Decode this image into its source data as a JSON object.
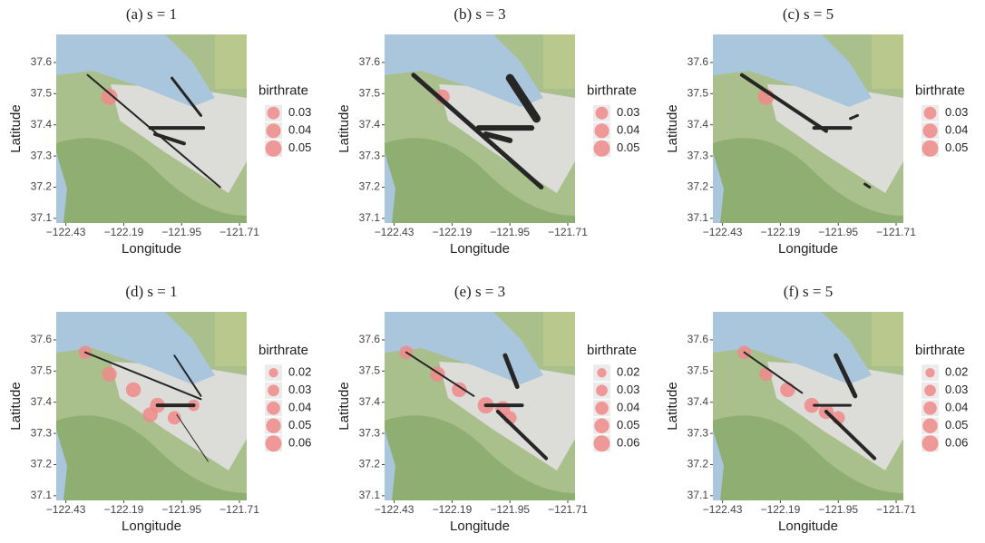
{
  "chart_data": [
    {
      "type": "scatter",
      "title": "(a) s = 1",
      "x_label": "Longitude",
      "y_label": "Latitude",
      "xlim": [
        -122.47,
        -121.68
      ],
      "ylim": [
        37.085,
        37.69
      ],
      "xticks": [
        {
          "value": -122.43,
          "label": "−122.43"
        },
        {
          "value": -122.19,
          "label": "−122.19"
        },
        {
          "value": -121.95,
          "label": "−121.95"
        },
        {
          "value": -121.71,
          "label": "−121.71"
        }
      ],
      "yticks": [
        37.1,
        37.2,
        37.3,
        37.4,
        37.5,
        37.6
      ],
      "legend_title": "birthrate",
      "legend_sizes": [
        0.03,
        0.04,
        0.05
      ],
      "color": "#f08a8a",
      "points": {
        "x": [
          -122.25
        ],
        "y": [
          37.49
        ],
        "size": [
          0.05
        ]
      },
      "segments": [
        {
          "x": [
            -122.34,
            -121.79
          ],
          "y": [
            37.56,
            37.2
          ],
          "width": 2
        },
        {
          "x": [
            -121.99,
            -121.87
          ],
          "y": [
            37.55,
            37.43
          ],
          "width": 3
        },
        {
          "x": [
            -122.08,
            -121.86
          ],
          "y": [
            37.39,
            37.39
          ],
          "width": 4
        },
        {
          "x": [
            -122.06,
            -121.94
          ],
          "y": [
            37.37,
            37.34
          ],
          "width": 4
        }
      ]
    },
    {
      "type": "scatter",
      "title": "(b) s = 3",
      "x_label": "Longitude",
      "y_label": "Latitude",
      "xlim": [
        -122.47,
        -121.68
      ],
      "ylim": [
        37.085,
        37.69
      ],
      "xticks": [
        {
          "value": -122.43,
          "label": "−122.43"
        },
        {
          "value": -122.19,
          "label": "−122.19"
        },
        {
          "value": -121.95,
          "label": "−121.95"
        },
        {
          "value": -121.71,
          "label": "−121.71"
        }
      ],
      "yticks": [
        37.1,
        37.2,
        37.3,
        37.4,
        37.5,
        37.6
      ],
      "legend_title": "birthrate",
      "legend_sizes": [
        0.03,
        0.04,
        0.05
      ],
      "color": "#f08a8a",
      "points": {
        "x": [
          -122.23
        ],
        "y": [
          37.49
        ],
        "size": [
          0.04
        ]
      },
      "segments": [
        {
          "x": [
            -122.35,
            -121.82
          ],
          "y": [
            37.56,
            37.2
          ],
          "width": 5
        },
        {
          "x": [
            -121.95,
            -121.84
          ],
          "y": [
            37.55,
            37.42
          ],
          "width": 9
        },
        {
          "x": [
            -122.08,
            -121.86
          ],
          "y": [
            37.39,
            37.39
          ],
          "width": 6
        },
        {
          "x": [
            -122.05,
            -121.95
          ],
          "y": [
            37.37,
            37.35
          ],
          "width": 6
        }
      ]
    },
    {
      "type": "scatter",
      "title": "(c) s = 5",
      "x_label": "Longitude",
      "y_label": "Latitude",
      "xlim": [
        -122.47,
        -121.68
      ],
      "ylim": [
        37.085,
        37.69
      ],
      "xticks": [
        {
          "value": -122.43,
          "label": "−122.43"
        },
        {
          "value": -122.19,
          "label": "−122.19"
        },
        {
          "value": -121.95,
          "label": "−121.95"
        },
        {
          "value": -121.71,
          "label": "−121.71"
        }
      ],
      "yticks": [
        37.1,
        37.2,
        37.3,
        37.4,
        37.5,
        37.6
      ],
      "legend_title": "birthrate",
      "legend_sizes": [
        0.03,
        0.04,
        0.05
      ],
      "color": "#f08a8a",
      "points": {
        "x": [
          -122.25
        ],
        "y": [
          37.49
        ],
        "size": [
          0.05
        ]
      },
      "segments": [
        {
          "x": [
            -122.35,
            -122.0
          ],
          "y": [
            37.56,
            37.38
          ],
          "width": 4
        },
        {
          "x": [
            -122.05,
            -121.9
          ],
          "y": [
            37.39,
            37.39
          ],
          "width": 4
        },
        {
          "x": [
            -121.9,
            -121.87
          ],
          "y": [
            37.42,
            37.43
          ],
          "width": 3
        },
        {
          "x": [
            -121.84,
            -121.82
          ],
          "y": [
            37.21,
            37.2
          ],
          "width": 3
        }
      ]
    },
    {
      "type": "scatter",
      "title": "(d) s = 1",
      "x_label": "Longitude",
      "y_label": "Latitude",
      "xlim": [
        -122.47,
        -121.68
      ],
      "ylim": [
        37.085,
        37.69
      ],
      "xticks": [
        {
          "value": -122.43,
          "label": "−122.43"
        },
        {
          "value": -122.19,
          "label": "−122.19"
        },
        {
          "value": -121.95,
          "label": "−121.95"
        },
        {
          "value": -121.71,
          "label": "−121.71"
        }
      ],
      "yticks": [
        37.1,
        37.2,
        37.3,
        37.4,
        37.5,
        37.6
      ],
      "legend_title": "birthrate",
      "legend_sizes": [
        0.02,
        0.03,
        0.04,
        0.05,
        0.06
      ],
      "color": "#f08a8a",
      "points": {
        "x": [
          -122.35,
          -122.25,
          -122.15,
          -122.05,
          -122.08,
          -121.98,
          -121.9
        ],
        "y": [
          37.56,
          37.49,
          37.44,
          37.39,
          37.36,
          37.35,
          37.39
        ],
        "size": [
          0.04,
          0.05,
          0.05,
          0.05,
          0.05,
          0.04,
          0.03
        ]
      },
      "segments": [
        {
          "x": [
            -122.35,
            -121.87
          ],
          "y": [
            37.56,
            37.41
          ],
          "width": 2
        },
        {
          "x": [
            -121.98,
            -121.87
          ],
          "y": [
            37.55,
            37.42
          ],
          "width": 2
        },
        {
          "x": [
            -122.05,
            -121.9
          ],
          "y": [
            37.39,
            37.39
          ],
          "width": 4
        },
        {
          "x": [
            -121.97,
            -121.84
          ],
          "y": [
            37.36,
            37.21
          ],
          "width": 1
        }
      ]
    },
    {
      "type": "scatter",
      "title": "(e) s = 3",
      "x_label": "Longitude",
      "y_label": "Latitude",
      "xlim": [
        -122.47,
        -121.68
      ],
      "ylim": [
        37.085,
        37.69
      ],
      "xticks": [
        {
          "value": -122.43,
          "label": "−122.43"
        },
        {
          "value": -122.19,
          "label": "−122.19"
        },
        {
          "value": -121.95,
          "label": "−121.95"
        },
        {
          "value": -121.71,
          "label": "−121.71"
        }
      ],
      "yticks": [
        37.1,
        37.2,
        37.3,
        37.4,
        37.5,
        37.6
      ],
      "legend_title": "birthrate",
      "legend_sizes": [
        0.02,
        0.03,
        0.04,
        0.05,
        0.06
      ],
      "color": "#f08a8a",
      "points": {
        "x": [
          -122.38,
          -122.25,
          -122.16,
          -122.05,
          -121.98,
          -121.95
        ],
        "y": [
          37.56,
          37.49,
          37.44,
          37.39,
          37.38,
          37.35
        ],
        "size": [
          0.04,
          0.05,
          0.05,
          0.06,
          0.05,
          0.04
        ]
      },
      "segments": [
        {
          "x": [
            -121.97,
            -121.92
          ],
          "y": [
            37.55,
            37.45
          ],
          "width": 5
        },
        {
          "x": [
            -122.05,
            -121.9
          ],
          "y": [
            37.39,
            37.39
          ],
          "width": 4
        },
        {
          "x": [
            -122.0,
            -121.8
          ],
          "y": [
            37.37,
            37.22
          ],
          "width": 4
        },
        {
          "x": [
            -122.38,
            -122.1
          ],
          "y": [
            37.56,
            37.42
          ],
          "width": 2
        }
      ]
    },
    {
      "type": "scatter",
      "title": "(f) s = 5",
      "x_label": "Longitude",
      "y_label": "Latitude",
      "xlim": [
        -122.47,
        -121.68
      ],
      "ylim": [
        37.085,
        37.69
      ],
      "xticks": [
        {
          "value": -122.43,
          "label": "−122.43"
        },
        {
          "value": -122.19,
          "label": "−122.19"
        },
        {
          "value": -121.95,
          "label": "−121.95"
        },
        {
          "value": -121.71,
          "label": "−121.71"
        }
      ],
      "yticks": [
        37.1,
        37.2,
        37.3,
        37.4,
        37.5,
        37.6
      ],
      "legend_title": "birthrate",
      "legend_sizes": [
        0.02,
        0.03,
        0.04,
        0.05,
        0.06
      ],
      "color": "#f08a8a",
      "points": {
        "x": [
          -122.34,
          -122.25,
          -122.16,
          -122.06,
          -122.0,
          -121.95
        ],
        "y": [
          37.56,
          37.49,
          37.44,
          37.39,
          37.37,
          37.35
        ],
        "size": [
          0.04,
          0.04,
          0.05,
          0.05,
          0.05,
          0.04
        ]
      },
      "segments": [
        {
          "x": [
            -122.34,
            -122.1
          ],
          "y": [
            37.56,
            37.43
          ],
          "width": 2
        },
        {
          "x": [
            -121.96,
            -121.88
          ],
          "y": [
            37.55,
            37.42
          ],
          "width": 5
        },
        {
          "x": [
            -122.05,
            -121.9
          ],
          "y": [
            37.39,
            37.39
          ],
          "width": 3
        },
        {
          "x": [
            -122.0,
            -121.8
          ],
          "y": [
            37.37,
            37.22
          ],
          "width": 4
        }
      ]
    }
  ]
}
